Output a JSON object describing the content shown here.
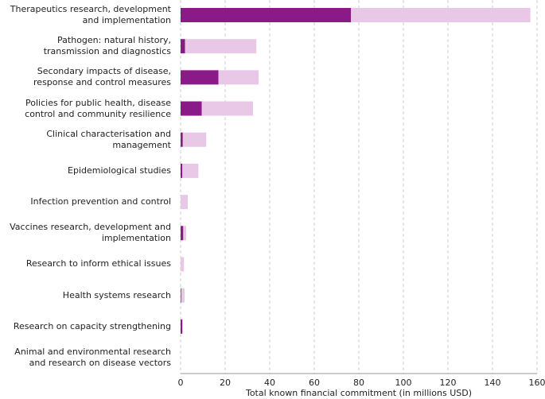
{
  "chart_data": {
    "type": "bar",
    "orientation": "horizontal",
    "stacked": true,
    "categories": [
      "Therapeutics research, development and implementation",
      "Pathogen: natural history, transmission and diagnostics",
      "Secondary impacts of disease, response and control measures",
      "Policies for public health, disease control and community resilience",
      "Clinical characterisation and management",
      "Epidemiological studies",
      "Infection prevention and control",
      "Vaccines research, development and implementation",
      "Research to inform ethical issues",
      "Health systems research",
      "Research on capacity strengthening",
      "Animal and environmental research and research on disease vectors"
    ],
    "series": [
      {
        "color": "#8b1a89",
        "values": [
          76.5,
          2,
          17,
          9.5,
          1,
          0.8,
          0,
          1.2,
          0,
          0.3,
          0.8,
          0
        ]
      },
      {
        "color": "#e8c8e6",
        "values": [
          80.5,
          32,
          18,
          23,
          10.5,
          7.2,
          3.2,
          1.3,
          1.5,
          1.5,
          0,
          0
        ]
      }
    ],
    "x_label": "Total known financial commitment (in millions USD)",
    "xlim": [
      0,
      160
    ],
    "xticks": [
      0,
      20,
      40,
      60,
      80,
      100,
      120,
      140,
      160
    ],
    "grid": true
  }
}
